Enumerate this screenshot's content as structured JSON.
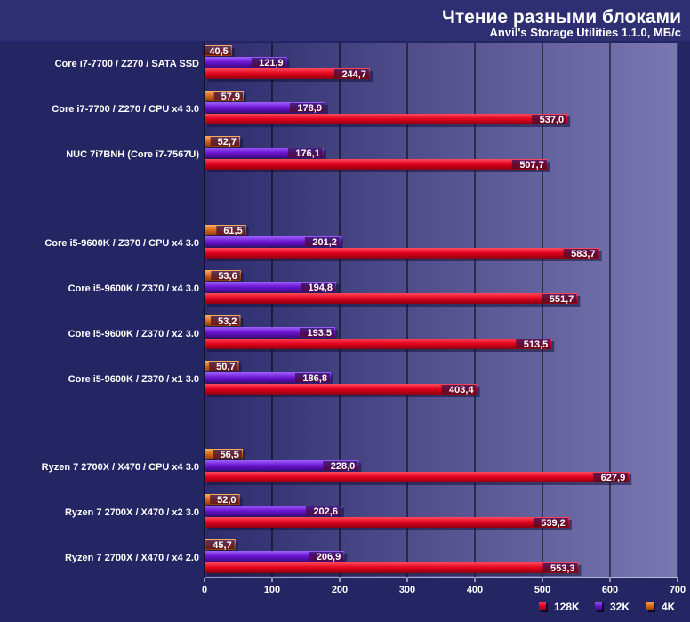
{
  "chart_data": {
    "type": "bar",
    "orientation": "horizontal",
    "title": "Чтение разными блоками",
    "subtitle": "Anvil's Storage Utilities 1.1.0, МБ/с",
    "xlim": [
      0,
      700
    ],
    "xticks": [
      "0",
      "100",
      "200",
      "300",
      "400",
      "500",
      "600",
      "700"
    ],
    "legend_position": "bottom-right",
    "groups": [
      {
        "categories": [
          "Core i7-7700 / Z270 / SATA SSD",
          "Core i7-7700 / Z270 / CPU x4 3.0",
          "NUC 7i7BNH (Core i7-7567U)"
        ],
        "v4K": [
          40.5,
          57.9,
          52.7
        ],
        "v32K": [
          121.9,
          178.9,
          176.1
        ],
        "v128K": [
          244.7,
          537.0,
          507.7
        ],
        "labels4K": [
          "40,5",
          "57,9",
          "52,7"
        ],
        "labels32K": [
          "121,9",
          "178,9",
          "176,1"
        ],
        "labels128K": [
          "244,7",
          "537,0",
          "507,7"
        ]
      },
      {
        "categories": [
          "Core i5-9600K / Z370 / CPU x4 3.0",
          "Core i5-9600K / Z370 / x4 3.0",
          "Core i5-9600K / Z370 / x2 3.0",
          "Core i5-9600K / Z370 / x1 3.0"
        ],
        "v4K": [
          61.5,
          53.6,
          53.2,
          50.7
        ],
        "v32K": [
          201.2,
          194.8,
          193.5,
          186.8
        ],
        "v128K": [
          583.7,
          551.7,
          513.5,
          403.4
        ],
        "labels4K": [
          "61,5",
          "53,6",
          "53,2",
          "50,7"
        ],
        "labels32K": [
          "201,2",
          "194,8",
          "193,5",
          "186,8"
        ],
        "labels128K": [
          "583,7",
          "551,7",
          "513,5",
          "403,4"
        ]
      },
      {
        "categories": [
          "Ryzen 7 2700X / X470 / CPU x4 3.0",
          "Ryzen 7 2700X / X470 / x2 3.0",
          "Ryzen 7 2700X / X470 / x4 2.0"
        ],
        "v4K": [
          56.5,
          52.0,
          45.7
        ],
        "v32K": [
          228.0,
          202.6,
          206.9
        ],
        "v128K": [
          627.9,
          539.2,
          553.3
        ],
        "labels4K": [
          "56,5",
          "52,0",
          "45,7"
        ],
        "labels32K": [
          "228,0",
          "202,6",
          "206,9"
        ],
        "labels128K": [
          "627,9",
          "539,2",
          "553,3"
        ]
      }
    ],
    "legend": [
      {
        "key": "128K",
        "label": "128K",
        "color": "#d8001a"
      },
      {
        "key": "32K",
        "label": "32K",
        "color": "#6a14d0"
      },
      {
        "key": "4K",
        "label": "4K",
        "color": "#d86818"
      }
    ]
  },
  "colors": {
    "background": "#242563",
    "plot_left": "#2d2c6c",
    "plot_right": "#7a78b2",
    "bar128K": "#d8001a",
    "bar32K": "#6a14d0",
    "bar4K": "#d86818"
  }
}
